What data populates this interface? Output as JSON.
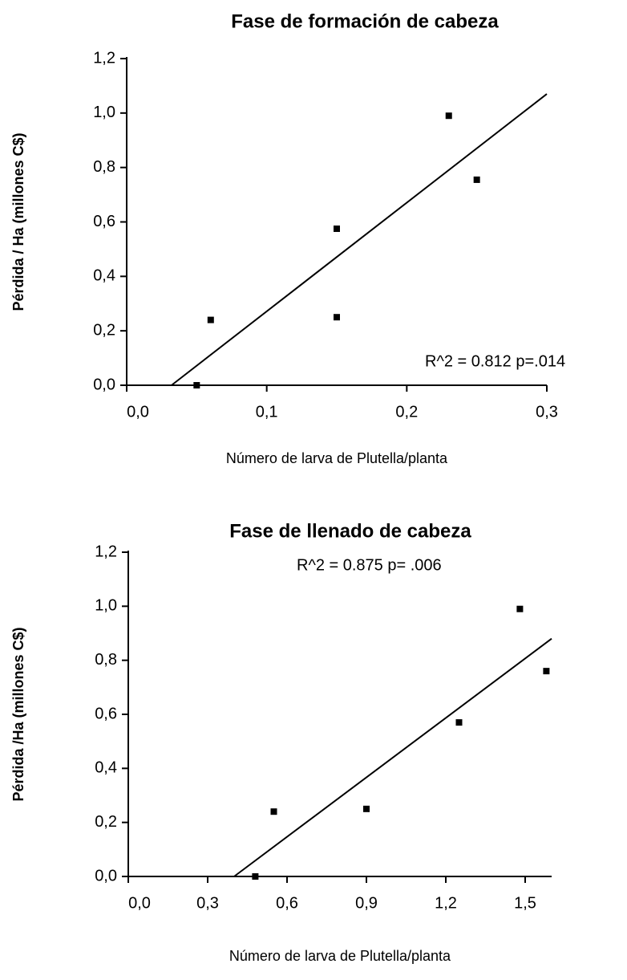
{
  "chart_data": [
    {
      "type": "scatter",
      "title": "Fase de formación de cabeza",
      "xlabel": "Número de larva de Plutella/planta",
      "ylabel": "Pérdida / Ha  (millones C$)",
      "annotation": "R^2 = 0.812  p=.014",
      "x": [
        0.05,
        0.06,
        0.15,
        0.15,
        0.23,
        0.25
      ],
      "values": [
        0.0,
        0.24,
        0.575,
        0.25,
        0.99,
        0.755
      ],
      "fit": {
        "x": [
          0.032,
          0.3
        ],
        "values": [
          0.0,
          1.07
        ]
      },
      "color": "#000000",
      "xlim": [
        0,
        0.3
      ],
      "ylim": [
        0,
        1.2
      ],
      "xticks": [
        {
          "value": 0,
          "label": "0,0"
        },
        {
          "value": 0.1,
          "label": "0,1"
        },
        {
          "value": 0.2,
          "label": "0,2"
        },
        {
          "value": 0.3,
          "label": "0,3"
        }
      ],
      "yticks": [
        {
          "value": 0,
          "label": "0,0"
        },
        {
          "value": 0.2,
          "label": "0,2"
        },
        {
          "value": 0.4,
          "label": "0,4"
        },
        {
          "value": 0.6,
          "label": "0,6"
        },
        {
          "value": 0.8,
          "label": "0,8"
        },
        {
          "value": 1.0,
          "label": "1,0"
        },
        {
          "value": 1.2,
          "label": "1,2"
        }
      ]
    },
    {
      "type": "scatter",
      "title": "Fase de llenado de cabeza",
      "xlabel": "Número de larva de Plutella/planta",
      "ylabel": "Pérdida /Ha (millones C$)",
      "annotation": "R^2 = 0.875  p= .006",
      "x": [
        0.48,
        0.55,
        0.9,
        1.25,
        1.48,
        1.58
      ],
      "values": [
        0.0,
        0.24,
        0.25,
        0.57,
        0.99,
        0.76
      ],
      "fit": {
        "x": [
          0.4,
          1.6
        ],
        "values": [
          0.0,
          0.88
        ]
      },
      "color": "#000000",
      "xlim": [
        0,
        1.6
      ],
      "ylim": [
        0,
        1.2
      ],
      "xticks": [
        {
          "value": 0,
          "label": "0,0"
        },
        {
          "value": 0.3,
          "label": "0,3"
        },
        {
          "value": 0.6,
          "label": "0,6"
        },
        {
          "value": 0.9,
          "label": "0,9"
        },
        {
          "value": 1.2,
          "label": "1,2"
        },
        {
          "value": 1.5,
          "label": "1,5"
        }
      ],
      "yticks": [
        {
          "value": 0,
          "label": "0,0"
        },
        {
          "value": 0.2,
          "label": "0,2"
        },
        {
          "value": 0.4,
          "label": "0,4"
        },
        {
          "value": 0.6,
          "label": "0,6"
        },
        {
          "value": 0.8,
          "label": "0,8"
        },
        {
          "value": 1.0,
          "label": "1,0"
        },
        {
          "value": 1.2,
          "label": "1,2"
        }
      ]
    }
  ]
}
